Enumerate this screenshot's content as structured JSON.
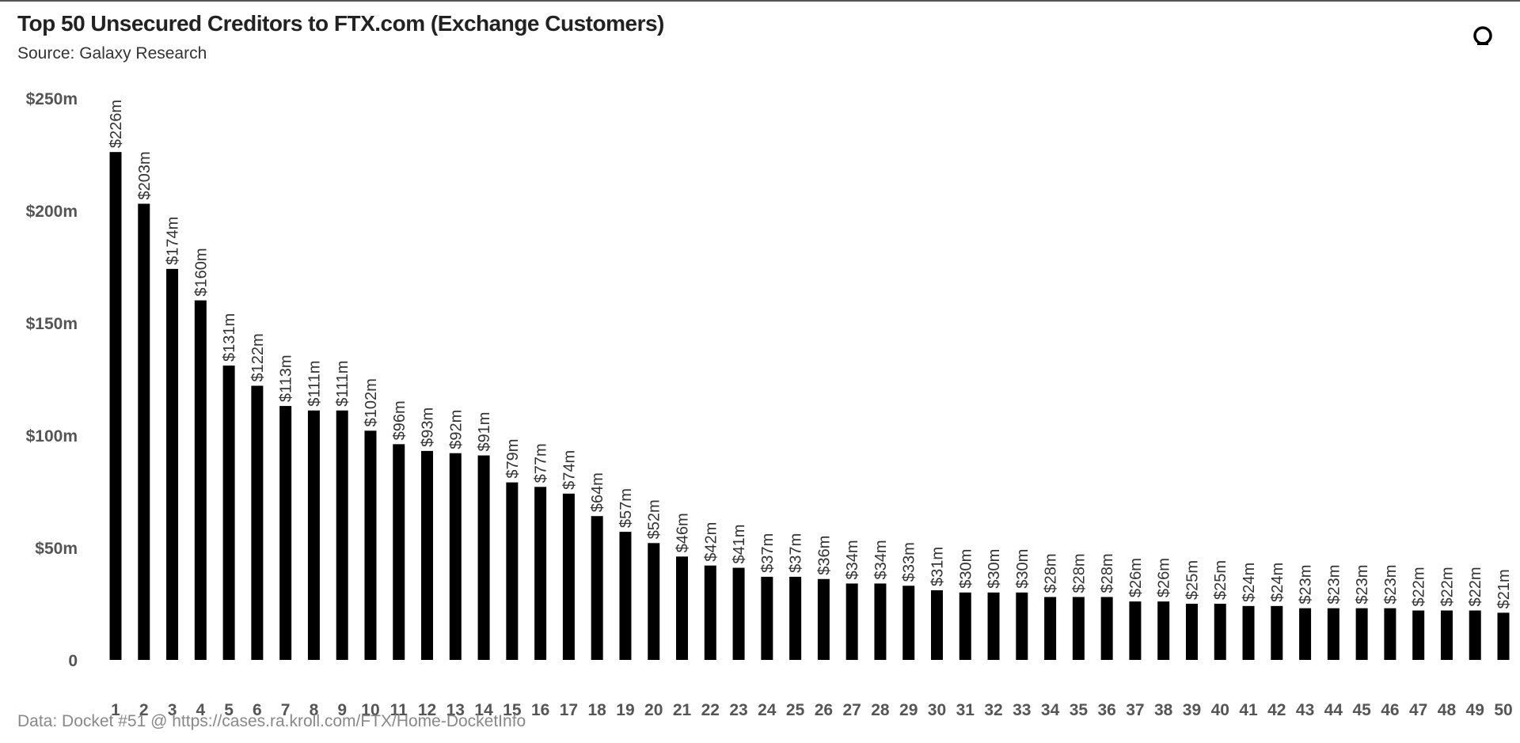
{
  "header": {
    "title": "Top 50 Unsecured Creditors to FTX.com (Exchange Customers)",
    "subtitle": "Source: Galaxy Research",
    "logo_icon": "galaxy-logo-icon"
  },
  "footer": {
    "text": "Data: Docket #51 @ https://cases.ra.kroll.com/FTX/Home-DocketInfo"
  },
  "chart_data": {
    "type": "bar",
    "title": "Top 50 Unsecured Creditors to FTX.com (Exchange Customers)",
    "subtitle": "Source: Galaxy Research",
    "xlabel": "",
    "ylabel": "",
    "ylim": [
      0,
      250
    ],
    "yticks": [
      0,
      50,
      100,
      150,
      200,
      250
    ],
    "ytick_labels": [
      "0",
      "$50m",
      "$100m",
      "$150m",
      "$200m",
      "$250m"
    ],
    "grid": false,
    "bar_color": "#000000",
    "categories": [
      "1",
      "2",
      "3",
      "4",
      "5",
      "6",
      "7",
      "8",
      "9",
      "10",
      "11",
      "12",
      "13",
      "14",
      "15",
      "16",
      "17",
      "18",
      "19",
      "20",
      "21",
      "22",
      "23",
      "24",
      "25",
      "26",
      "27",
      "28",
      "29",
      "30",
      "31",
      "32",
      "33",
      "34",
      "35",
      "36",
      "37",
      "38",
      "39",
      "40",
      "41",
      "42",
      "43",
      "44",
      "45",
      "46",
      "47",
      "48",
      "49",
      "50"
    ],
    "values": [
      226,
      203,
      174,
      160,
      131,
      122,
      113,
      111,
      111,
      102,
      96,
      93,
      92,
      91,
      79,
      77,
      74,
      64,
      57,
      52,
      46,
      42,
      41,
      37,
      37,
      36,
      34,
      34,
      33,
      31,
      30,
      30,
      30,
      28,
      28,
      28,
      26,
      26,
      25,
      25,
      24,
      24,
      23,
      23,
      23,
      23,
      22,
      22,
      22,
      21
    ],
    "data_labels": [
      "$226m",
      "$203m",
      "$174m",
      "$160m",
      "$131m",
      "$122m",
      "$113m",
      "$111m",
      "$111m",
      "$102m",
      "$96m",
      "$93m",
      "$92m",
      "$91m",
      "$79m",
      "$77m",
      "$74m",
      "$64m",
      "$57m",
      "$52m",
      "$46m",
      "$42m",
      "$41m",
      "$37m",
      "$37m",
      "$36m",
      "$34m",
      "$34m",
      "$33m",
      "$31m",
      "$30m",
      "$30m",
      "$30m",
      "$28m",
      "$28m",
      "$28m",
      "$26m",
      "$26m",
      "$25m",
      "$25m",
      "$24m",
      "$24m",
      "$23m",
      "$23m",
      "$23m",
      "$23m",
      "$22m",
      "$22m",
      "$22m",
      "$21m"
    ]
  }
}
